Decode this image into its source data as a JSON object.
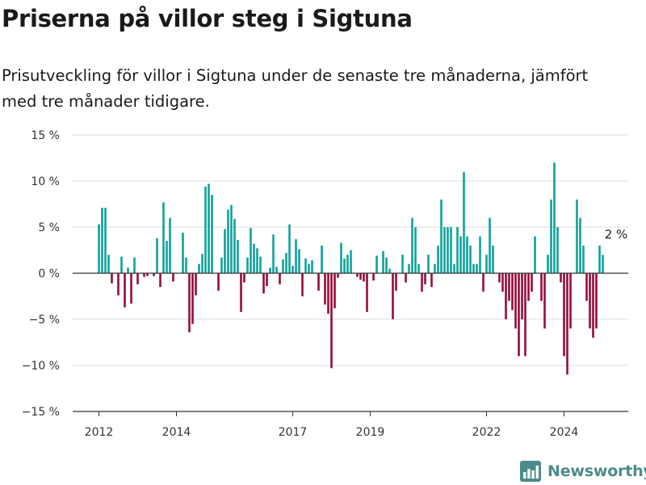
{
  "header": {
    "title": "Priserna på villor steg i Sigtuna",
    "subtitle_line1": "Prisutveckling för villor i Sigtuna under de senaste tre månaderna, jämfört",
    "subtitle_line2": "med tre månader tidigare."
  },
  "brand": {
    "name": "Newsworthy",
    "icon": "newsworthy-logo-icon"
  },
  "colors": {
    "positive": "#10a19a",
    "negative": "#950d3c",
    "zero_line": "#333333",
    "grid": "#dddddd",
    "brand": "#4b8c8b"
  },
  "chart_data": {
    "type": "bar",
    "title": "Priserna på villor steg i Sigtuna",
    "subtitle": "Prisutveckling för villor i Sigtuna under de senaste tre månaderna, jämfört med tre månader tidigare.",
    "xlabel": "",
    "ylabel": "",
    "x_unit": "month",
    "x_start": "2012-01",
    "x_tick_labels": [
      "2012",
      "2014",
      "2017",
      "2019",
      "2022",
      "2024"
    ],
    "x_tick_dates": [
      "2012-01",
      "2014-01",
      "2017-01",
      "2019-01",
      "2022-01",
      "2024-01"
    ],
    "ylim": [
      -15,
      15
    ],
    "y_ticks": [
      -15,
      -10,
      -5,
      0,
      5,
      10,
      15
    ],
    "y_tick_labels": [
      "−15 %",
      "−10 %",
      "−5 %",
      "0 %",
      "5 %",
      "10 %",
      "15 %"
    ],
    "grid": "horizontal",
    "annotation": {
      "label": "2 %",
      "value": 2,
      "date": "2025-05"
    },
    "values": [
      5.3,
      7.1,
      7.1,
      2.0,
      -1.1,
      0,
      -2.4,
      1.8,
      -3.7,
      0.6,
      -3.3,
      1.7,
      -1.2,
      0,
      -0.4,
      -0.3,
      0,
      -0.3,
      3.8,
      -1.5,
      7.7,
      3.5,
      6.0,
      -0.9,
      0,
      0,
      4.4,
      1.7,
      -6.4,
      -5.5,
      -2.4,
      1.0,
      2.1,
      9.4,
      9.7,
      8.5,
      0,
      -1.9,
      1.7,
      4.8,
      6.9,
      7.4,
      5.9,
      3.6,
      -4.2,
      -1.0,
      1.7,
      4.9,
      3.2,
      2.7,
      1.8,
      -2.2,
      -1.4,
      0.6,
      4.2,
      0.7,
      -1.2,
      1.5,
      2.2,
      5.3,
      0.8,
      3.7,
      2.6,
      -2.5,
      1.6,
      1.0,
      1.4,
      0,
      -1.9,
      3.0,
      -3.4,
      -4.4,
      -10.3,
      -3.8,
      -0.5,
      3.3,
      1.6,
      2.0,
      2.5,
      0,
      -0.4,
      -0.7,
      -0.9,
      -4.2,
      0,
      -0.8,
      1.9,
      0,
      2.4,
      1.7,
      0.5,
      -5.0,
      -1.9,
      0,
      2.0,
      -1.0,
      1.0,
      6.0,
      5.0,
      1.0,
      -2.0,
      -1.2,
      2.0,
      -1.5,
      1.0,
      3.0,
      8.0,
      5.0,
      5.0,
      5.0,
      1.0,
      5.0,
      4.0,
      11.0,
      4.0,
      3.0,
      1.0,
      1.0,
      4.0,
      -2.0,
      2.0,
      6.0,
      3.0,
      0,
      -1.0,
      -2.0,
      -5.0,
      -3.0,
      -4.0,
      -6.0,
      -9.0,
      -5.0,
      -9.0,
      -3.0,
      -2.0,
      4.0,
      0,
      -3.0,
      -6.0,
      2.0,
      8.0,
      12.0,
      5.0,
      -1.0,
      -9.0,
      -11.0,
      -6.0,
      0,
      8.0,
      6.0,
      3.0,
      -3.0,
      -6.0,
      -7.0,
      -6.0,
      3.0,
      2.0
    ]
  }
}
